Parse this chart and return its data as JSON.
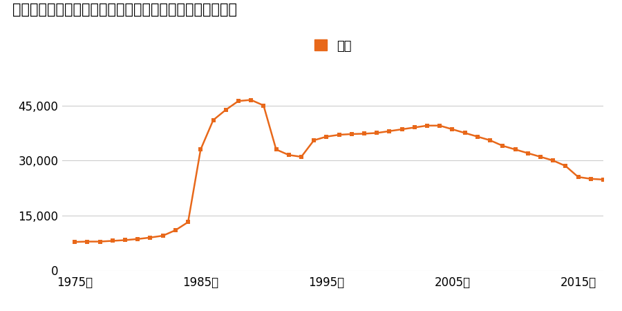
{
  "title": "北海道帯広市西４条南３３丁目３番１ほか１筆の地価推移",
  "legend_label": "価格",
  "line_color": "#e8681a",
  "marker_color": "#e8681a",
  "background_color": "#ffffff",
  "grid_color": "#cccccc",
  "xlim": [
    1974,
    2017
  ],
  "ylim": [
    0,
    50000
  ],
  "yticks": [
    0,
    15000,
    30000,
    45000
  ],
  "xticks": [
    1975,
    1985,
    1995,
    2005,
    2015
  ],
  "data": [
    [
      1975,
      7800
    ],
    [
      1976,
      7900
    ],
    [
      1977,
      7900
    ],
    [
      1978,
      8100
    ],
    [
      1979,
      8300
    ],
    [
      1980,
      8600
    ],
    [
      1981,
      9000
    ],
    [
      1982,
      9500
    ],
    [
      1983,
      11000
    ],
    [
      1984,
      13200
    ],
    [
      1985,
      33000
    ],
    [
      1986,
      41000
    ],
    [
      1987,
      43800
    ],
    [
      1988,
      46200
    ],
    [
      1989,
      46500
    ],
    [
      1990,
      45000
    ],
    [
      1991,
      33000
    ],
    [
      1992,
      31500
    ],
    [
      1993,
      31000
    ],
    [
      1994,
      35500
    ],
    [
      1995,
      36500
    ],
    [
      1996,
      37000
    ],
    [
      1997,
      37200
    ],
    [
      1998,
      37300
    ],
    [
      1999,
      37500
    ],
    [
      2000,
      38000
    ],
    [
      2001,
      38500
    ],
    [
      2002,
      39000
    ],
    [
      2003,
      39500
    ],
    [
      2004,
      39500
    ],
    [
      2005,
      38500
    ],
    [
      2006,
      37500
    ],
    [
      2007,
      36500
    ],
    [
      2008,
      35500
    ],
    [
      2009,
      34000
    ],
    [
      2010,
      33000
    ],
    [
      2011,
      32000
    ],
    [
      2012,
      31000
    ],
    [
      2013,
      30000
    ],
    [
      2014,
      28500
    ],
    [
      2015,
      25500
    ],
    [
      2016,
      25000
    ],
    [
      2017,
      24800
    ]
  ]
}
